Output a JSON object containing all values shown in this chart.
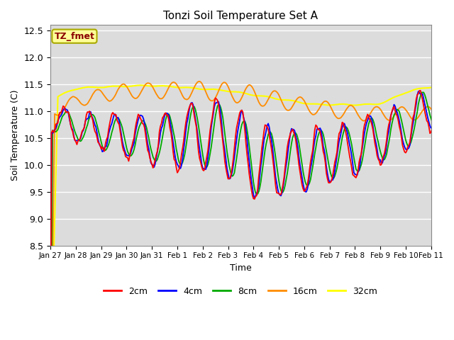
{
  "title": "Tonzi Soil Temperature Set A",
  "xlabel": "Time",
  "ylabel": "Soil Temperature (C)",
  "ylim": [
    8.5,
    12.6
  ],
  "annotation_text": "TZ_fmet",
  "annotation_color": "#8B0000",
  "annotation_bg": "#FFFF99",
  "bg_color": "#DCDCDC",
  "line_colors": {
    "2cm": "#FF0000",
    "4cm": "#0000FF",
    "8cm": "#00AA00",
    "16cm": "#FF8C00",
    "32cm": "#FFFF00"
  },
  "x_tick_labels": [
    "Jan 27",
    "Jan 28",
    "Jan 29",
    "Jan 30",
    "Jan 31",
    "Feb 1",
    "Feb 2",
    "Feb 3",
    "Feb 4",
    "Feb 5",
    "Feb 6",
    "Feb 7",
    "Feb 8",
    "Feb 9",
    "Feb 10",
    "Feb 11"
  ],
  "yticks": [
    8.5,
    9.0,
    9.5,
    10.0,
    10.5,
    11.0,
    11.5,
    12.0,
    12.5
  ]
}
